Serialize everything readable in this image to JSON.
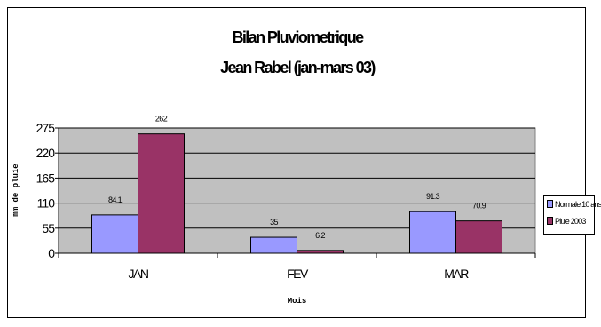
{
  "title": "Bilan Pluviometrique",
  "subtitle": "Jean Rabel (jan-mars 03)",
  "chart_data": {
    "type": "bar",
    "title": "Bilan Pluviometrique",
    "subtitle": "Jean Rabel (jan-mars 03)",
    "categories": [
      "JAN",
      "FEV",
      "MAR"
    ],
    "series": [
      {
        "name": "Normale 10 ans",
        "values": [
          84.1,
          35,
          91.3
        ],
        "labels": [
          "84.1",
          "35",
          "91.3"
        ],
        "color": "#9999ff"
      },
      {
        "name": "Pluie 2003",
        "values": [
          262,
          6.2,
          70.9
        ],
        "labels": [
          "262",
          "6.2",
          "70.9"
        ],
        "color": "#993366"
      }
    ],
    "xlabel": "Mois",
    "ylabel": "mm de pluie",
    "ylim": [
      0,
      275
    ],
    "yticks": [
      0,
      55,
      110,
      165,
      220,
      275
    ],
    "grid": true,
    "plot_background": "#c0c0c0",
    "legend_position": "right"
  }
}
